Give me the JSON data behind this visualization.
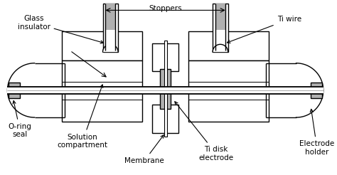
{
  "bg": "#ffffff",
  "lc": "#000000",
  "gc": "#b0b0b0",
  "lw": 1.0,
  "fig_w": 4.74,
  "fig_h": 2.46,
  "dpi": 100,
  "labels": {
    "glass_insulator": "Glass\ninsulator",
    "stoppers": "Stoppers",
    "ti_wire": "Ti wire",
    "o_ring": "O-ring\nseal",
    "solution": "Solution\ncompartment",
    "membrane": "Membrane",
    "ti_disk": "Ti disk\nelectrode",
    "electrode_holder": "Electrode\nholder"
  }
}
